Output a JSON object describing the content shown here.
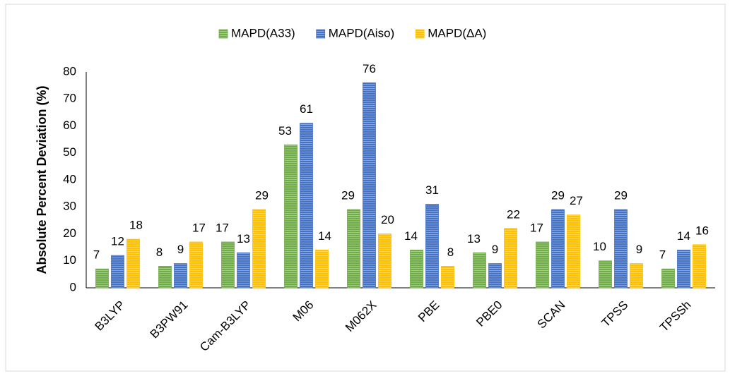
{
  "chart_data": {
    "type": "bar",
    "ylabel": "Absolute Percent Deviation (%)",
    "categories": [
      "B3LYP",
      "B3PW91",
      "Cam-B3LYP",
      "M06",
      "M062X",
      "PBE",
      "PBE0",
      "SCAN",
      "TPSS",
      "TPSSh"
    ],
    "series": [
      {
        "name": "MAPD(A33)",
        "color": "#70ad47",
        "values": [
          7,
          8,
          17,
          53,
          29,
          14,
          13,
          17,
          10,
          7
        ]
      },
      {
        "name": "MAPD(Aiso)",
        "color": "#4472c4",
        "values": [
          12,
          9,
          13,
          61,
          76,
          31,
          9,
          29,
          29,
          14
        ]
      },
      {
        "name": "MAPD(ΔA)",
        "color": "#ffc000",
        "values": [
          18,
          17,
          29,
          14,
          20,
          8,
          22,
          27,
          9,
          16
        ]
      }
    ],
    "ylim": [
      0,
      80
    ],
    "yticks": [
      0,
      10,
      20,
      30,
      40,
      50,
      60,
      70,
      80
    ],
    "legend": "top",
    "grid": false
  }
}
